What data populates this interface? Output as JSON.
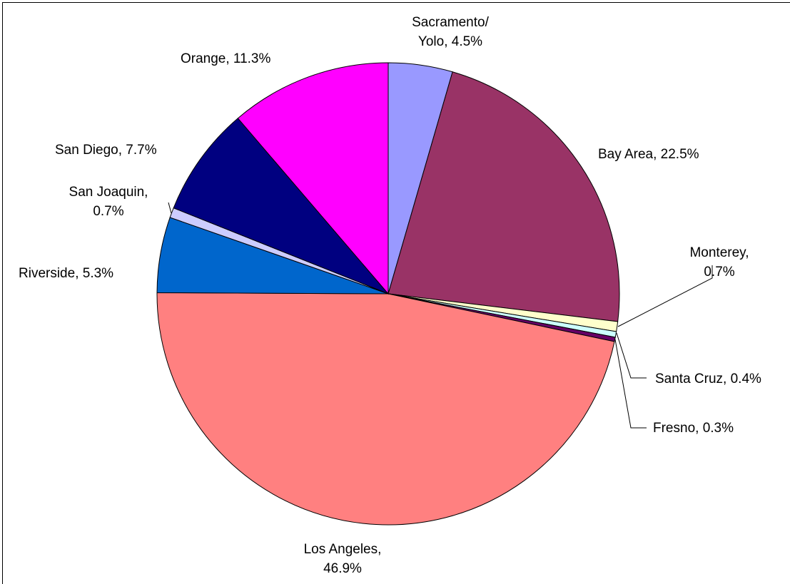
{
  "chart_data": {
    "type": "pie",
    "values": [
      4.5,
      22.5,
      0.7,
      0.4,
      0.3,
      46.9,
      5.3,
      0.7,
      7.7,
      11.3
    ],
    "value_labels": [
      "Sacramento/\nYolo, 4.5%",
      "Bay Area, 22.5%",
      "Monterey, 0.7%",
      "Santa Cruz, 0.4%",
      "Fresno, 0.3%",
      "Los Angeles,\n46.9%",
      "Riverside, 5.3%",
      "San Joaquin,\n0.7%",
      "San Diego, 7.7%",
      "Orange, 11.3%"
    ],
    "colors": [
      "#9999ff",
      "#993366",
      "#ffffcc",
      "#ccffff",
      "#660066",
      "#ff8080",
      "#0066cc",
      "#ccccff",
      "#000080",
      "#ff00ff"
    ]
  }
}
